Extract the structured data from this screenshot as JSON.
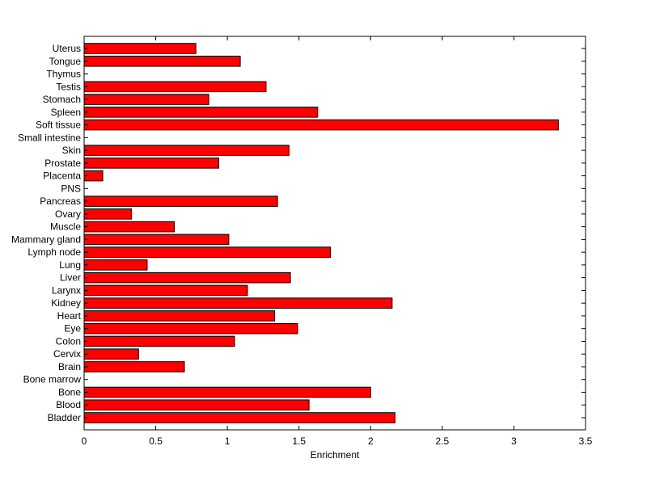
{
  "chart_data": {
    "type": "bar",
    "orientation": "horizontal",
    "title": "",
    "xlabel": "Enrichment",
    "ylabel": "",
    "xlim": [
      0,
      3.5
    ],
    "xticks": [
      "0",
      "0.5",
      "1",
      "1.5",
      "2",
      "2.5",
      "3",
      "3.5"
    ],
    "grid": false,
    "bar_color": "#ff0000",
    "bar_edge_color": "#000000",
    "categories": [
      "Bladder",
      "Blood",
      "Bone",
      "Bone marrow",
      "Brain",
      "Cervix",
      "Colon",
      "Eye",
      "Heart",
      "Kidney",
      "Larynx",
      "Liver",
      "Lung",
      "Lymph node",
      "Mammary gland",
      "Muscle",
      "Ovary",
      "Pancreas",
      "PNS",
      "Placenta",
      "Prostate",
      "Skin",
      "Small intestine",
      "Soft tissue",
      "Spleen",
      "Stomach",
      "Testis",
      "Thymus",
      "Tongue",
      "Uterus"
    ],
    "values": [
      2.17,
      1.57,
      2.0,
      0,
      0.7,
      0.38,
      1.05,
      1.49,
      1.33,
      2.15,
      1.14,
      1.44,
      0.44,
      1.72,
      1.01,
      0.63,
      0.33,
      1.35,
      0,
      0.13,
      0.94,
      1.43,
      0,
      3.31,
      1.63,
      0.87,
      1.27,
      0,
      1.09,
      0.78
    ]
  }
}
